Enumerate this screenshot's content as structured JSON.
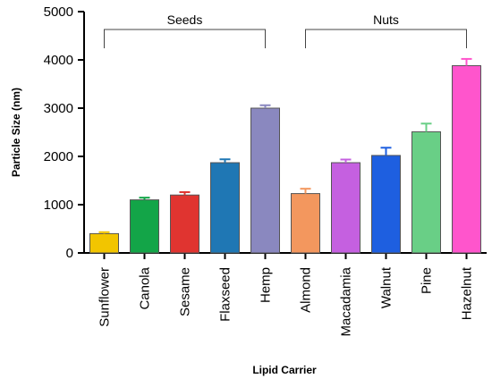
{
  "chart_data": {
    "type": "bar",
    "xlabel": "Lipid Carrier",
    "ylabel": "Particle Size (nm)",
    "ylim": [
      0,
      5000
    ],
    "yticks": [
      0,
      1000,
      2000,
      3000,
      4000,
      5000
    ],
    "grid": false,
    "legend": "none",
    "categories": [
      "Sunflower",
      "Canola",
      "Sesame",
      "Flaxseed",
      "Hemp",
      "Almond",
      "Macadamia",
      "Walnut",
      "Pine",
      "Hazelnut"
    ],
    "values": [
      400,
      1100,
      1200,
      1870,
      3000,
      1230,
      1870,
      2020,
      2510,
      3880
    ],
    "errors": [
      30,
      45,
      60,
      70,
      60,
      100,
      65,
      160,
      170,
      140
    ],
    "colors": [
      "#f2c500",
      "#13a548",
      "#e03430",
      "#1f77b4",
      "#8a88bf",
      "#f3975e",
      "#c560e0",
      "#1e5fe0",
      "#69cf86",
      "#ff55cc"
    ],
    "groups": [
      {
        "label": "Seeds",
        "start": "Sunflower",
        "end": "Hemp"
      },
      {
        "label": "Nuts",
        "start": "Almond",
        "end": "Hazelnut"
      }
    ]
  }
}
